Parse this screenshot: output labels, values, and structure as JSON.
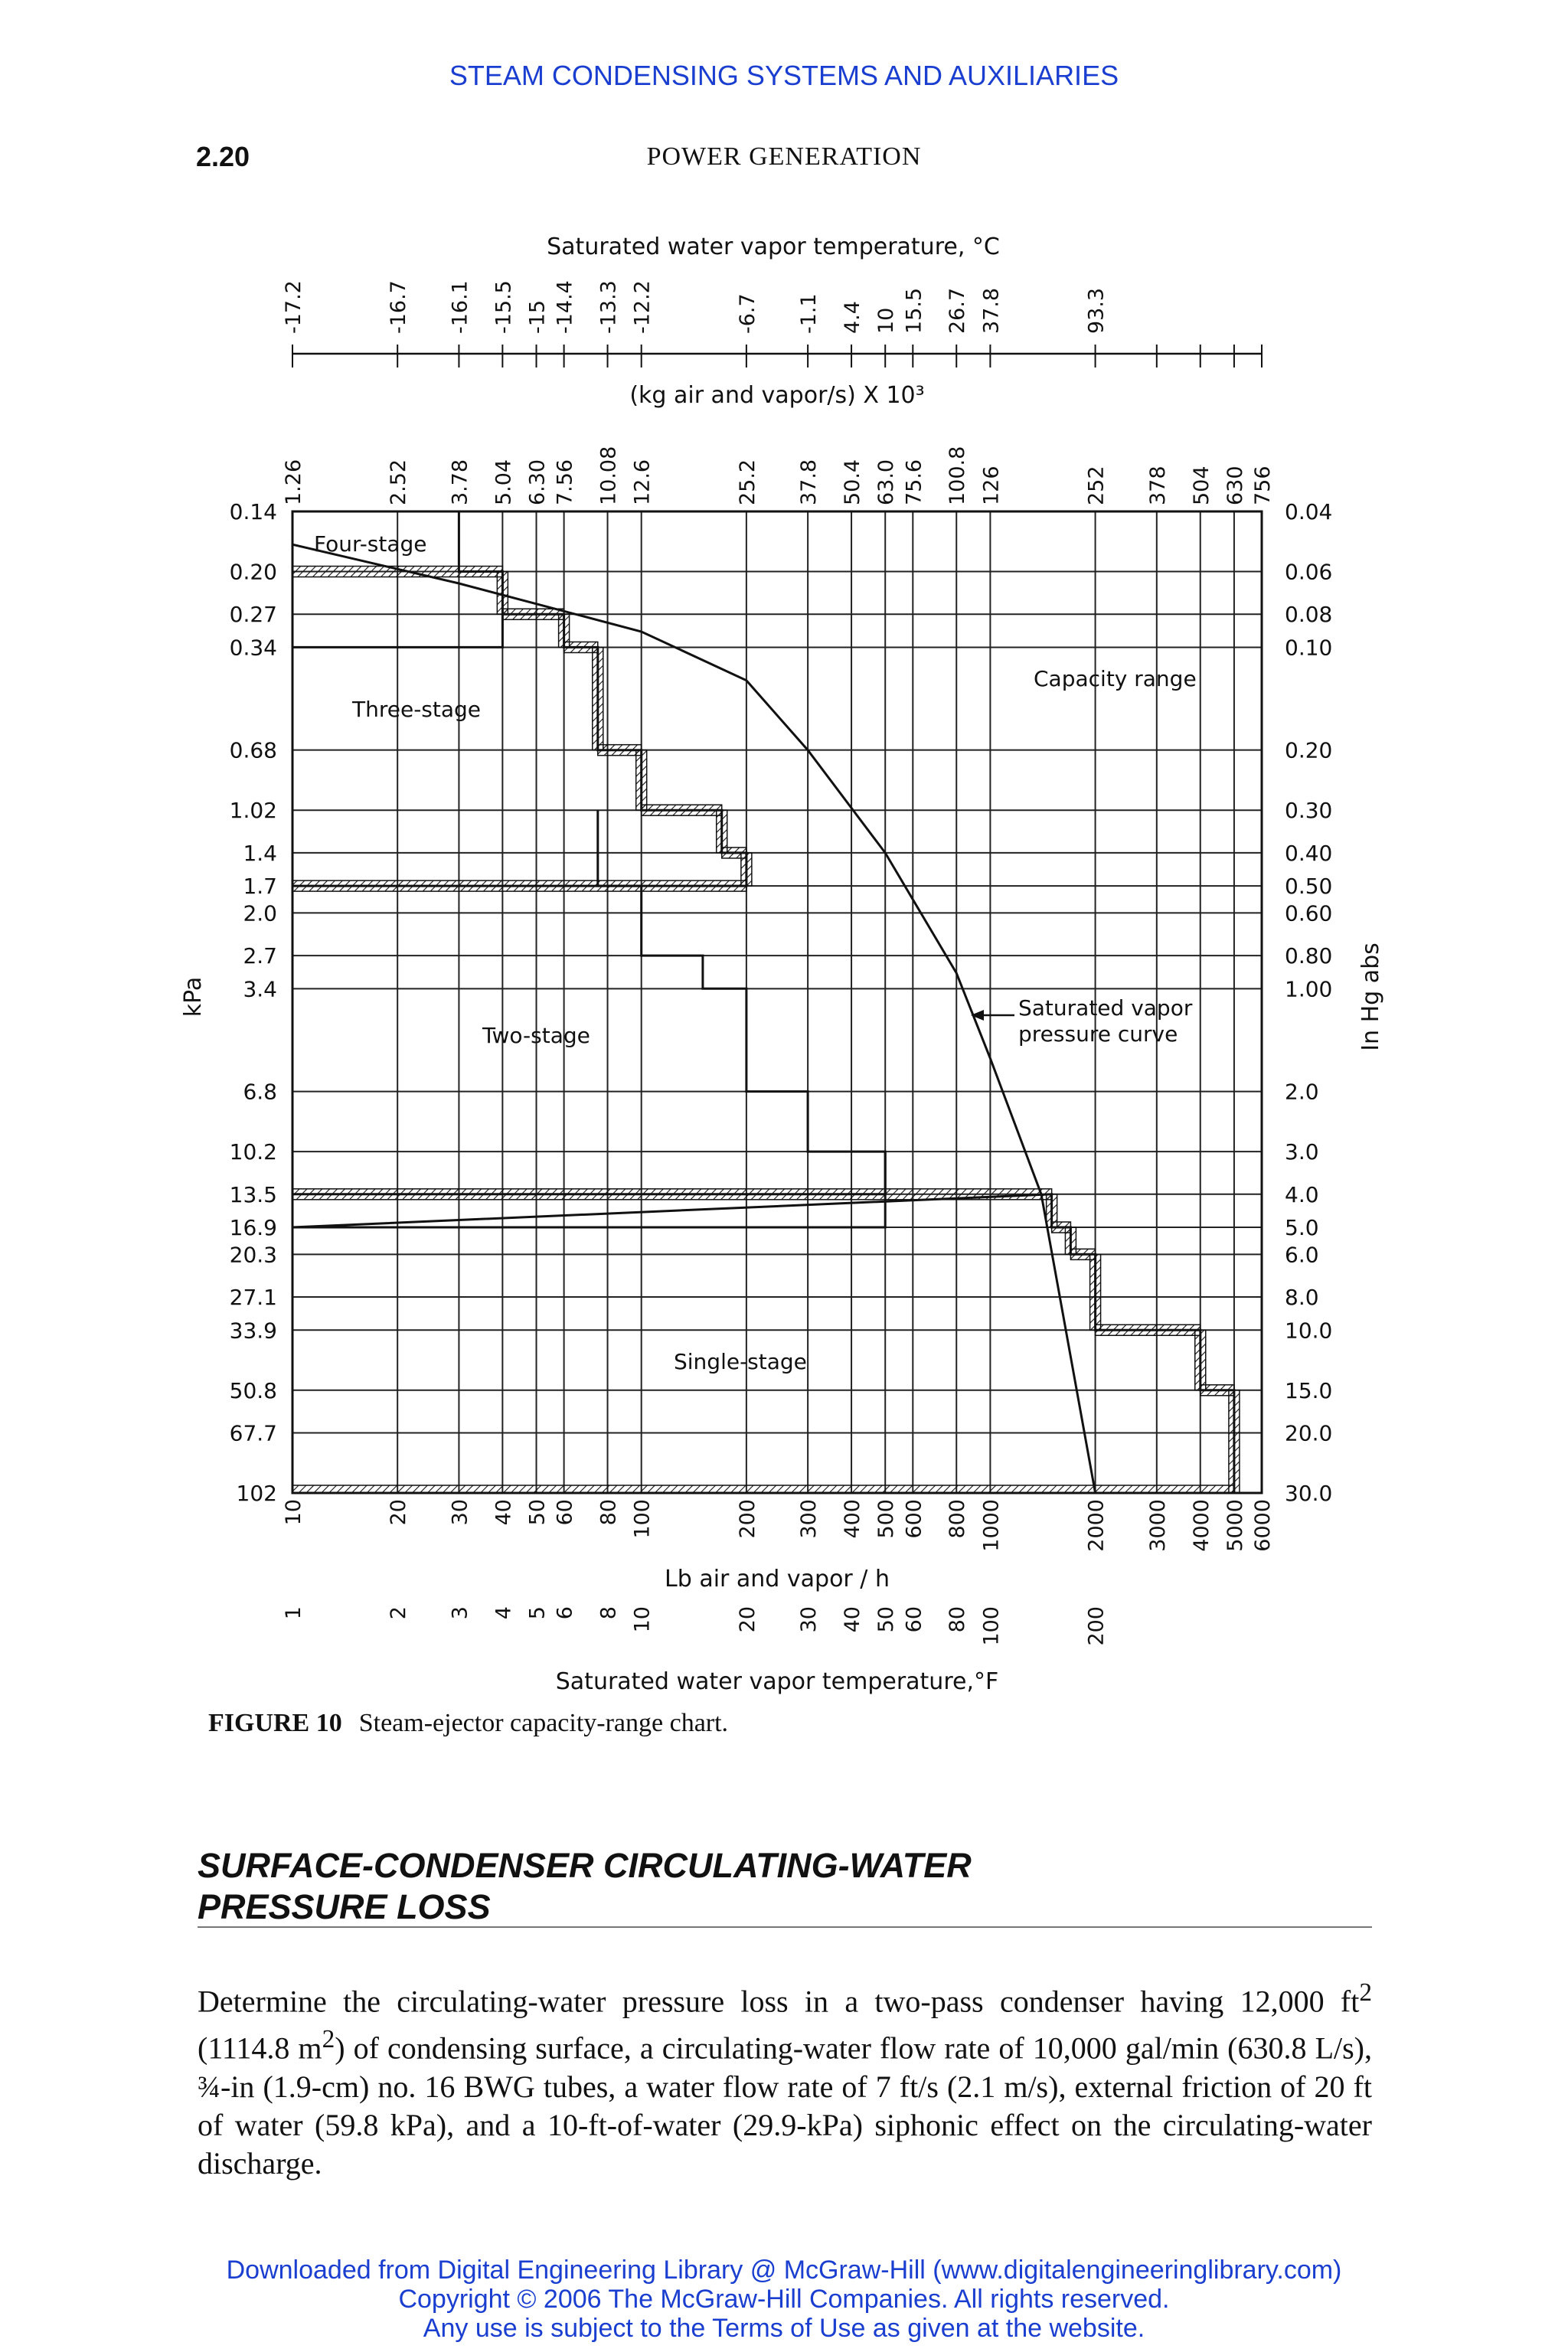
{
  "header": {
    "running_title": "STEAM CONDENSING SYSTEMS AND AUXILIARIES",
    "page_number": "2.20",
    "book_title": "POWER GENERATION"
  },
  "figure": {
    "label": "FIGURE 10",
    "caption": "Steam-ejector capacity-range chart."
  },
  "chart_data": {
    "type": "line",
    "x_scale": "log",
    "y_scale": "log",
    "top_axis_title": "Saturated water vapor temperature, °C",
    "top_temp_c_ticks": [
      "-17.2",
      "-16.7",
      "-16.1",
      "-15.5",
      "-15",
      "-14.4",
      "-13.3",
      "-12.2",
      "-6.7",
      "-1.1",
      "4.4",
      "10",
      "15.5",
      "26.7",
      "37.8",
      "93.3"
    ],
    "upper_axis_title": "(kg air and vapor/s) X 10³",
    "kg_ticks": [
      "1.26",
      "2.52",
      "3.78",
      "5.04",
      "6.30",
      "7.56",
      "10.08",
      "12.6",
      "25.2",
      "37.8",
      "50.4",
      "63.0",
      "75.6",
      "100.8",
      "126",
      "252",
      "378",
      "504",
      "630",
      "756"
    ],
    "xlabel": "Lb air and vapor / h",
    "x_ticks": [
      "10",
      "20",
      "30",
      "40",
      "50",
      "60",
      "80",
      "100",
      "200",
      "300",
      "400",
      "500",
      "600",
      "800",
      "1000",
      "2000",
      "3000",
      "4000",
      "5000",
      "6000"
    ],
    "xlim": [
      10,
      6000
    ],
    "bottom_temp_f_ticks": [
      "1",
      "2",
      "3",
      "4",
      "5",
      "6",
      "8",
      "10",
      "20",
      "30",
      "40",
      "50",
      "60",
      "80",
      "100",
      "200"
    ],
    "bottom_axis_title": "Saturated water vapor temperature,°F",
    "left_axis_title": "kPa",
    "kpa_ticks": [
      "0.14",
      "0.20",
      "0.27",
      "0.34",
      "0.68",
      "1.02",
      "1.4",
      "1.7",
      "2.0",
      "2.7",
      "3.4",
      "6.8",
      "10.2",
      "13.5",
      "16.9",
      "20.3",
      "27.1",
      "33.9",
      "50.8",
      "67.7",
      "102"
    ],
    "right_axis_title": "In Hg abs",
    "inhg_ticks": [
      "0.04",
      "0.06",
      "0.08",
      "0.10",
      "0.20",
      "0.30",
      "0.40",
      "0.50",
      "0.60",
      "0.80",
      "1.00",
      "2.0",
      "3.0",
      "4.0",
      "5.0",
      "6.0",
      "8.0",
      "10.0",
      "15.0",
      "20.0",
      "30.0"
    ],
    "ylim": [
      0.04,
      30.0
    ],
    "region_labels": [
      "Four-stage",
      "Three-stage",
      "Two-stage",
      "Single-stage",
      "Capacity range"
    ],
    "annotation": "Saturated vapor pressure curve",
    "saturated_vapor_curve": [
      [
        10,
        0.05
      ],
      [
        30,
        0.065
      ],
      [
        100,
        0.09
      ],
      [
        200,
        0.125
      ],
      [
        300,
        0.2
      ],
      [
        500,
        0.4
      ],
      [
        800,
        0.9
      ],
      [
        1000,
        1.6
      ],
      [
        1400,
        4.0
      ],
      [
        2000,
        30.0
      ]
    ],
    "stage_boundaries": [
      {
        "name": "Four-stage",
        "steps": [
          [
            30,
            0.04
          ],
          [
            30,
            0.06
          ],
          [
            40,
            0.06
          ],
          [
            40,
            0.08
          ],
          [
            40,
            0.1
          ],
          [
            10,
            0.1
          ]
        ]
      },
      {
        "name": "Three-stage",
        "steps": [
          [
            40,
            0.08
          ],
          [
            60,
            0.08
          ],
          [
            60,
            0.1
          ],
          [
            75,
            0.1
          ],
          [
            75,
            0.2
          ],
          [
            100,
            0.2
          ],
          [
            100,
            0.3
          ],
          [
            170,
            0.3
          ],
          [
            170,
            0.4
          ],
          [
            200,
            0.4
          ],
          [
            200,
            0.5
          ],
          [
            10,
            0.5
          ]
        ]
      },
      {
        "name": "Two-stage",
        "steps": [
          [
            75,
            0.3
          ],
          [
            75,
            0.5
          ],
          [
            100,
            0.5
          ],
          [
            100,
            0.8
          ],
          [
            150,
            0.8
          ],
          [
            150,
            1.0
          ],
          [
            200,
            1.0
          ],
          [
            200,
            2.0
          ],
          [
            300,
            2.0
          ],
          [
            300,
            3.0
          ],
          [
            500,
            3.0
          ],
          [
            500,
            4.0
          ],
          [
            10,
            4.0
          ]
        ]
      },
      {
        "name": "Single-stage",
        "steps": [
          [
            500,
            3.0
          ],
          [
            500,
            5.0
          ],
          [
            10,
            5.0
          ],
          [
            1500,
            4.0
          ],
          [
            1500,
            5.0
          ],
          [
            1700,
            5.0
          ],
          [
            1700,
            6.0
          ],
          [
            2000,
            6.0
          ],
          [
            2000,
            10.0
          ],
          [
            4000,
            10.0
          ],
          [
            4000,
            15.0
          ],
          [
            5000,
            15.0
          ],
          [
            5000,
            30.0
          ],
          [
            10,
            30.0
          ]
        ]
      }
    ]
  },
  "section": {
    "title_line1": "SURFACE-CONDENSER CIRCULATING-WATER",
    "title_line2": "PRESSURE LOSS",
    "body_before_ft2": "Determine the circulating-water pressure loss in a two-pass condenser having 12,000 ft",
    "sup_2a": "2",
    "body_between_m2": " (1114.8 m",
    "sup_2b": "2",
    "body_after_m2": ") of condensing surface, a circulating-water flow rate of 10,000 gal/min (630.8 L/s), ¾-in (1.9-cm) no. 16 BWG tubes, a water flow rate of 7 ft/s (2.1 m/s), external friction of 20 ft of water (59.8 kPa), and a 10-ft-of-water (29.9-kPa) siphonic effect on the circulating-water discharge."
  },
  "footer": {
    "line1": "Downloaded from Digital Engineering Library @ McGraw-Hill (www.digitalengineeringlibrary.com)",
    "line2": "Copyright © 2006 The McGraw-Hill Companies. All rights reserved.",
    "line3": "Any use is subject to the Terms of Use as given at the website."
  }
}
